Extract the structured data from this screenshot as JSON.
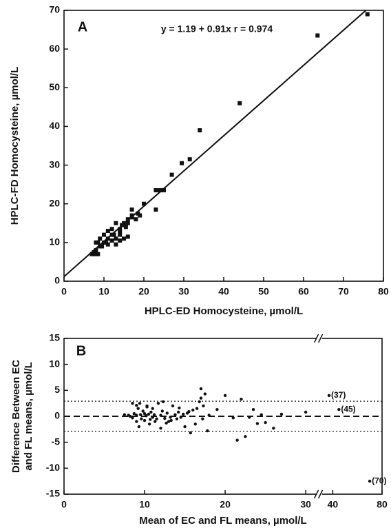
{
  "chart_data": [
    {
      "type": "scatter",
      "panel_label": "A",
      "annotation": "y = 1.19 + 0.91x  r = 0.974",
      "xlabel": "HPLC-ED Homocysteine, µmol/L",
      "ylabel": "HPLC-FD Homocysteine, µmol/L",
      "color": "#111111",
      "x": [
        76,
        63.5,
        44,
        34,
        31.5,
        29.5,
        27,
        25,
        24,
        23,
        23,
        20,
        19,
        18,
        17,
        17,
        16,
        16,
        16,
        15,
        14.5,
        14,
        14,
        13,
        13,
        12.5,
        12,
        12,
        11,
        11,
        10.5,
        10,
        10,
        9.5,
        9,
        9,
        8.5,
        8,
        8,
        8,
        7.5,
        7,
        7.5,
        8.5,
        14,
        15,
        13,
        11,
        12,
        14,
        15.5,
        17,
        18.5
      ],
      "y": [
        69,
        63.5,
        46,
        39,
        31.5,
        30.5,
        27.5,
        23.5,
        23.5,
        23.5,
        18.5,
        20,
        17,
        16,
        18.5,
        17,
        16,
        15,
        11.5,
        15,
        14.5,
        13,
        12,
        15,
        11,
        12,
        12,
        13.5,
        13,
        11,
        10,
        10,
        12,
        9,
        11,
        9,
        10,
        10,
        7,
        8,
        7.5,
        7,
        7,
        7,
        10.5,
        11,
        9.5,
        9.5,
        10.5,
        13.5,
        14,
        16.5,
        17.5
      ],
      "fit": {
        "intercept": 1.19,
        "slope": 0.91
      },
      "xlim": [
        0,
        80
      ],
      "xticks": [
        0,
        10,
        20,
        30,
        40,
        50,
        60,
        70,
        80
      ],
      "ylim": [
        0,
        70
      ],
      "yticks": [
        0,
        10,
        20,
        30,
        40,
        50,
        60,
        70
      ]
    },
    {
      "type": "scatter",
      "panel_label": "B",
      "xlabel": "Mean of EC and FL means, µmol/L",
      "ylabel": [
        "Difference Between EC",
        "and FL means, µmol/L"
      ],
      "color": "#111111",
      "x": [
        7.5,
        8,
        8.2,
        8.5,
        8.7,
        9,
        9,
        9.2,
        9.4,
        9.5,
        9.6,
        9.8,
        10,
        10,
        10.2,
        10.3,
        10.5,
        10.6,
        10.8,
        11,
        11,
        11.2,
        11.5,
        11.7,
        12,
        12,
        12.2,
        12.5,
        12.8,
        13,
        13.2,
        13.5,
        13.8,
        14,
        14.2,
        14.5,
        14.8,
        15,
        15.3,
        15.7,
        16,
        16.3,
        16.5,
        17,
        17,
        17.2,
        17.5,
        17.8,
        18,
        19,
        20,
        21,
        21.5,
        22,
        22.5,
        23,
        23.5,
        24,
        24.5,
        25,
        26,
        27,
        30,
        8.5,
        9.3,
        10.3,
        11.3,
        12.3,
        13.3,
        14.3,
        15.5,
        16.8,
        17.3,
        9,
        10.7,
        12.7
      ],
      "y": [
        0.3,
        0.2,
        0,
        -0.3,
        0.5,
        0.2,
        -1,
        1.5,
        2.5,
        0.3,
        -0.5,
        1,
        0.5,
        -0.8,
        0.1,
        2,
        0.4,
        -1.5,
        0.8,
        -0.2,
        1.5,
        0.3,
        -0.5,
        2.5,
        0.2,
        -2.3,
        1,
        -0.4,
        0.6,
        -1,
        -0.2,
        2,
        0.3,
        -0.5,
        0.8,
        -0.2,
        0.4,
        -2,
        0.6,
        -3.2,
        1.2,
        -1.5,
        1.5,
        5.3,
        3.5,
        -0.5,
        4.3,
        -2.8,
        0.2,
        1.3,
        4,
        -0.3,
        -4.6,
        3.3,
        -3.9,
        -0.2,
        1.3,
        -1.4,
        0.3,
        -1.2,
        -2.3,
        0.4,
        0.8,
        2.5,
        -2,
        1.8,
        -1,
        2.8,
        -0.8,
        1.6,
        0.9,
        2.8,
        2,
        2.1,
        -0.6,
        -1.3
      ],
      "outliers": {
        "x": [
          37,
          45,
          70
        ],
        "y": [
          4,
          1.3,
          -12.5
        ],
        "labels": [
          "(37)",
          "(45)",
          "(70)"
        ]
      },
      "hlines": [
        {
          "value": 0,
          "style": "dashed"
        },
        {
          "value": 2.9,
          "style": "dotted"
        },
        {
          "value": -2.9,
          "style": "dotted"
        }
      ],
      "x_segments": [
        {
          "xlim": [
            0,
            30
          ],
          "xticks": [
            0,
            10,
            20,
            30
          ]
        },
        {
          "xlim": [
            40,
            80
          ],
          "xticks": [
            40,
            80
          ]
        }
      ],
      "ylim": [
        -15,
        15
      ],
      "yticks": [
        -15,
        -10,
        -5,
        0,
        5,
        10,
        15
      ]
    }
  ]
}
